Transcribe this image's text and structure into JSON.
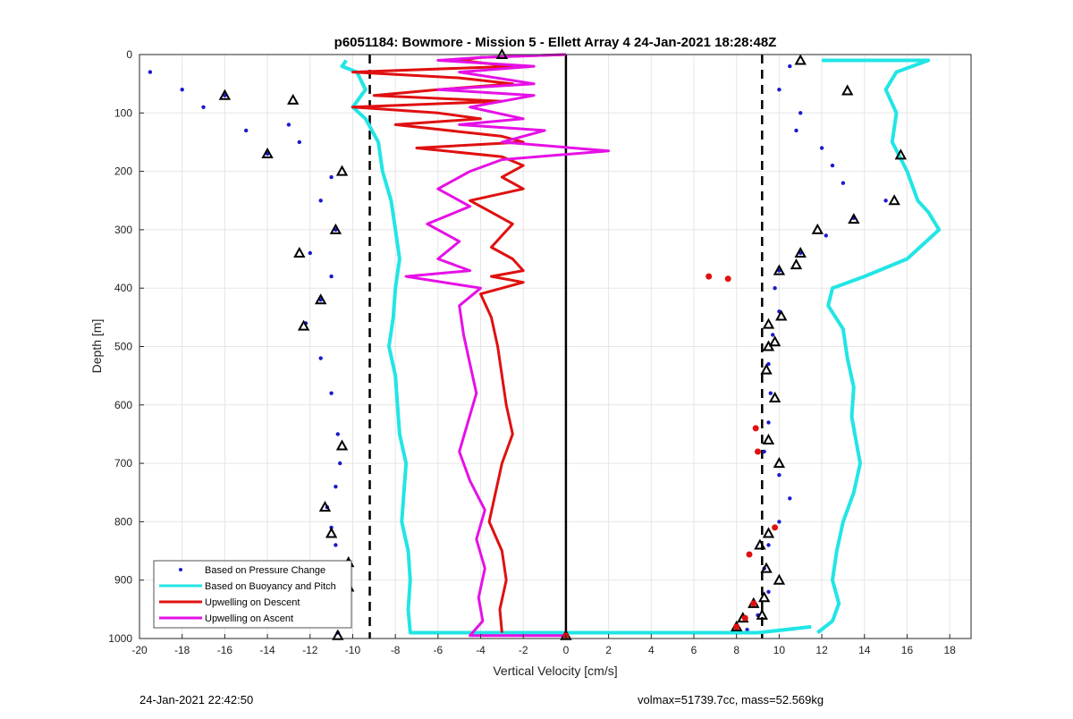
{
  "chart_data": {
    "type": "line",
    "title": "p6051184: Bowmore - Mission 5 - Ellett Array 4 24-Jan-2021 18:28:48Z",
    "xlabel": "Vertical Velocity [cm/s]",
    "ylabel": "Depth [m]",
    "xlim": [
      -20,
      19
    ],
    "ylim": [
      0,
      1000
    ],
    "y_reversed": true,
    "grid": true,
    "legend_position": "bottom-left",
    "x_ticks": [
      "-20",
      "-18",
      "-16",
      "-14",
      "-12",
      "-10",
      "-8",
      "-6",
      "-4",
      "-2",
      "0",
      "2",
      "4",
      "6",
      "8",
      "10",
      "12",
      "14",
      "16",
      "18"
    ],
    "y_ticks": [
      "0",
      "100",
      "200",
      "300",
      "400",
      "500",
      "600",
      "700",
      "800",
      "900",
      "1000"
    ],
    "reference_lines": [
      {
        "x": -9.2,
        "style": "dashed"
      },
      {
        "x": 9.2,
        "style": "dashed"
      },
      {
        "x": 0,
        "style": "solid"
      }
    ],
    "series": [
      {
        "name": "Based on Pressure Change",
        "style": "dots",
        "color": "#1a1acd",
        "descent": [
          [
            -19.5,
            30
          ],
          [
            -18,
            60
          ],
          [
            -17,
            90
          ],
          [
            -16,
            70
          ],
          [
            -15,
            130
          ],
          [
            -14,
            170
          ],
          [
            -13,
            120
          ],
          [
            -12.5,
            150
          ],
          [
            -11,
            210
          ],
          [
            -11.5,
            250
          ],
          [
            -10.8,
            300
          ],
          [
            -12,
            340
          ],
          [
            -11,
            380
          ],
          [
            -11.5,
            420
          ],
          [
            -12.2,
            460
          ],
          [
            -11.5,
            520
          ],
          [
            -11,
            580
          ],
          [
            -10.7,
            650
          ],
          [
            -10.6,
            700
          ],
          [
            -10.8,
            740
          ],
          [
            -11.2,
            775
          ],
          [
            -11,
            810
          ],
          [
            -10.8,
            840
          ],
          [
            -10.3,
            870
          ],
          [
            -10.2,
            900
          ],
          [
            -10.5,
            940
          ],
          [
            -10.7,
            990
          ]
        ],
        "ascent": [
          [
            10.5,
            20
          ],
          [
            10,
            60
          ],
          [
            11,
            100
          ],
          [
            10.8,
            130
          ],
          [
            12,
            160
          ],
          [
            12.5,
            190
          ],
          [
            13,
            220
          ],
          [
            15,
            250
          ],
          [
            13.5,
            280
          ],
          [
            12.2,
            310
          ],
          [
            11,
            340
          ],
          [
            10,
            370
          ],
          [
            9.8,
            400
          ],
          [
            10,
            440
          ],
          [
            9.7,
            480
          ],
          [
            9.5,
            530
          ],
          [
            9.6,
            580
          ],
          [
            9.5,
            630
          ],
          [
            9.3,
            680
          ],
          [
            10,
            720
          ],
          [
            10.5,
            760
          ],
          [
            10,
            800
          ],
          [
            9.5,
            840
          ],
          [
            9.3,
            880
          ],
          [
            9.5,
            920
          ],
          [
            9,
            960
          ],
          [
            8.5,
            985
          ]
        ]
      },
      {
        "name": "Based on Buoyancy and Pitch",
        "style": "line",
        "color": "#22e5e5",
        "descent": [
          [
            -10.3,
            10
          ],
          [
            -10.5,
            20
          ],
          [
            -9.8,
            30
          ],
          [
            -9.4,
            60
          ],
          [
            -10,
            90
          ],
          [
            -9.4,
            110
          ],
          [
            -8.8,
            150
          ],
          [
            -8.6,
            200
          ],
          [
            -8.2,
            250
          ],
          [
            -8.0,
            300
          ],
          [
            -7.8,
            350
          ],
          [
            -8.0,
            400
          ],
          [
            -8.1,
            450
          ],
          [
            -8.3,
            500
          ],
          [
            -8.0,
            550
          ],
          [
            -7.9,
            600
          ],
          [
            -7.8,
            650
          ],
          [
            -7.5,
            700
          ],
          [
            -7.6,
            750
          ],
          [
            -7.7,
            800
          ],
          [
            -7.4,
            850
          ],
          [
            -7.3,
            900
          ],
          [
            -7.4,
            950
          ],
          [
            -7.3,
            990
          ],
          [
            -5,
            990
          ],
          [
            0,
            990
          ],
          [
            6,
            990
          ],
          [
            9,
            990
          ],
          [
            11.5,
            980
          ]
        ],
        "ascent": [
          [
            12,
            10
          ],
          [
            17,
            10
          ],
          [
            15.5,
            30
          ],
          [
            15,
            60
          ],
          [
            15.5,
            100
          ],
          [
            15.3,
            150
          ],
          [
            16,
            200
          ],
          [
            16.5,
            250
          ],
          [
            17,
            270
          ],
          [
            17.5,
            300
          ],
          [
            16,
            350
          ],
          [
            14,
            380
          ],
          [
            12.5,
            400
          ],
          [
            12.3,
            430
          ],
          [
            13,
            470
          ],
          [
            13.2,
            520
          ],
          [
            13.5,
            570
          ],
          [
            13.4,
            620
          ],
          [
            13.6,
            660
          ],
          [
            13.8,
            700
          ],
          [
            13.5,
            750
          ],
          [
            13,
            800
          ],
          [
            12.7,
            850
          ],
          [
            12.5,
            900
          ],
          [
            12.8,
            940
          ],
          [
            12.5,
            970
          ],
          [
            11.8,
            990
          ]
        ]
      },
      {
        "name": "Upwelling on Descent",
        "style": "line",
        "color": "#e01010",
        "points": [
          [
            0,
            0
          ],
          [
            -4,
            5
          ],
          [
            -5,
            10
          ],
          [
            -2.5,
            20
          ],
          [
            -10,
            30
          ],
          [
            -5,
            40
          ],
          [
            -2.5,
            50
          ],
          [
            -6,
            60
          ],
          [
            -9,
            70
          ],
          [
            -3,
            80
          ],
          [
            -10,
            90
          ],
          [
            -6,
            100
          ],
          [
            -4,
            110
          ],
          [
            -8,
            120
          ],
          [
            -3,
            140
          ],
          [
            -2,
            150
          ],
          [
            -7,
            160
          ],
          [
            -3,
            175
          ],
          [
            -2,
            190
          ],
          [
            -3,
            210
          ],
          [
            -2,
            230
          ],
          [
            -4.5,
            250
          ],
          [
            -3.5,
            270
          ],
          [
            -2.5,
            290
          ],
          [
            -3,
            310
          ],
          [
            -3.5,
            330
          ],
          [
            -2.5,
            350
          ],
          [
            -2,
            370
          ],
          [
            -3.5,
            380
          ],
          [
            -2,
            390
          ],
          [
            -4,
            410
          ],
          [
            -3.5,
            450
          ],
          [
            -3.2,
            500
          ],
          [
            -3,
            550
          ],
          [
            -2.8,
            600
          ],
          [
            -2.5,
            650
          ],
          [
            -3,
            700
          ],
          [
            -3.3,
            750
          ],
          [
            -3.6,
            800
          ],
          [
            -3.0,
            850
          ],
          [
            -2.8,
            900
          ],
          [
            -3.1,
            950
          ],
          [
            -3.0,
            990
          ]
        ]
      },
      {
        "name": "Upwelling on Ascent",
        "style": "line",
        "color": "#e610e6",
        "points": [
          [
            0,
            0
          ],
          [
            -4,
            5
          ],
          [
            -6,
            10
          ],
          [
            -1.5,
            20
          ],
          [
            -5,
            30
          ],
          [
            -1.5,
            50
          ],
          [
            -6,
            60
          ],
          [
            -1.5,
            70
          ],
          [
            -4.5,
            90
          ],
          [
            -2,
            110
          ],
          [
            -5,
            120
          ],
          [
            -1,
            130
          ],
          [
            -3,
            150
          ],
          [
            2,
            165
          ],
          [
            -3,
            180
          ],
          [
            -4.5,
            200
          ],
          [
            -6,
            230
          ],
          [
            -4.5,
            260
          ],
          [
            -6.5,
            290
          ],
          [
            -5,
            320
          ],
          [
            -6,
            350
          ],
          [
            -4.5,
            370
          ],
          [
            -7.5,
            380
          ],
          [
            -4,
            400
          ],
          [
            -5,
            430
          ],
          [
            -4.8,
            480
          ],
          [
            -4.5,
            530
          ],
          [
            -4.2,
            580
          ],
          [
            -4.6,
            630
          ],
          [
            -5.0,
            680
          ],
          [
            -4.5,
            730
          ],
          [
            -3.8,
            780
          ],
          [
            -4.2,
            830
          ],
          [
            -3.8,
            880
          ],
          [
            -4.1,
            930
          ],
          [
            -3.9,
            970
          ],
          [
            -4.5,
            995
          ],
          [
            0,
            995
          ]
        ]
      },
      {
        "name": "",
        "style": "triangle-markers",
        "color": "#000000",
        "points": [
          [
            -3,
            0
          ],
          [
            -16,
            70
          ],
          [
            -12.8,
            78
          ],
          [
            -14,
            170
          ],
          [
            -10.5,
            200
          ],
          [
            -10.8,
            300
          ],
          [
            -12.5,
            340
          ],
          [
            -11.5,
            420
          ],
          [
            -12.3,
            465
          ],
          [
            -10.5,
            670
          ],
          [
            -11.3,
            775
          ],
          [
            -11,
            820
          ],
          [
            -10.2,
            870
          ],
          [
            -10.4,
            890
          ],
          [
            -10.2,
            912
          ],
          [
            -10.7,
            995
          ],
          [
            11,
            10
          ],
          [
            13.2,
            62
          ],
          [
            15.7,
            172
          ],
          [
            15.4,
            250
          ],
          [
            13.5,
            282
          ],
          [
            11.8,
            300
          ],
          [
            11,
            340
          ],
          [
            10.8,
            360
          ],
          [
            10,
            370
          ],
          [
            10.1,
            448
          ],
          [
            9.5,
            462
          ],
          [
            9.8,
            492
          ],
          [
            9.5,
            500
          ],
          [
            9.4,
            540
          ],
          [
            9.8,
            588
          ],
          [
            9.5,
            660
          ],
          [
            10,
            700
          ],
          [
            9.5,
            820
          ],
          [
            9.1,
            840
          ],
          [
            9.4,
            880
          ],
          [
            10,
            900
          ],
          [
            9.2,
            960
          ],
          [
            9.3,
            930
          ],
          [
            8.8,
            940
          ],
          [
            8.3,
            965
          ],
          [
            8,
            980
          ],
          [
            0,
            995
          ]
        ]
      },
      {
        "name": "",
        "style": "red-markers",
        "color": "#e01010",
        "points": [
          [
            6.7,
            380
          ],
          [
            7.6,
            384
          ],
          [
            8.9,
            640
          ],
          [
            9,
            680
          ],
          [
            8.6,
            856
          ],
          [
            8.8,
            940
          ],
          [
            8.4,
            965
          ],
          [
            8,
            980
          ],
          [
            9.8,
            810
          ],
          [
            0,
            995
          ]
        ]
      }
    ]
  },
  "footer": {
    "left_text": "24-Jan-2021 22:42:50",
    "right_text": "volmax=51739.7cc, mass=52.569kg"
  }
}
